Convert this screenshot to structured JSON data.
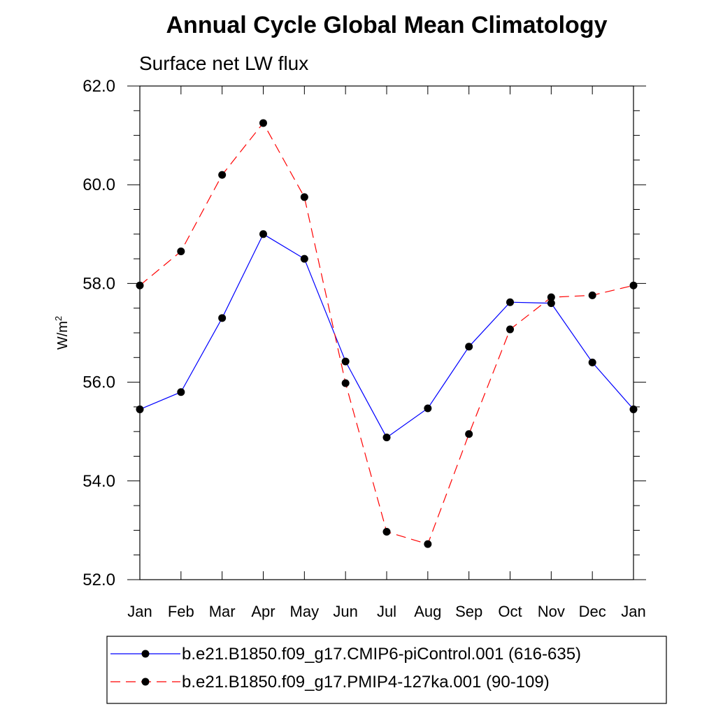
{
  "chart_data": {
    "type": "line",
    "title": "Annual Cycle Global Mean Climatology",
    "subtitle": "Surface net LW flux",
    "ylabel": "W/m",
    "ylabel_superscript": "2",
    "ylim": [
      52.0,
      62.0
    ],
    "y_ticks": [
      "52.0",
      "54.0",
      "56.0",
      "58.0",
      "60.0",
      "62.0"
    ],
    "categories": [
      "Jan",
      "Feb",
      "Mar",
      "Apr",
      "May",
      "Jun",
      "Jul",
      "Aug",
      "Sep",
      "Oct",
      "Nov",
      "Dec",
      "Jan"
    ],
    "grid": false,
    "legend_position": "bottom",
    "series": [
      {
        "name": "b.e21.B1850.f09_g17.CMIP6-piControl.001 (616-635)",
        "color": "#0000ff",
        "line_style": "solid",
        "marker": "filled-circle",
        "values": [
          55.45,
          55.8,
          57.3,
          59.0,
          58.5,
          56.42,
          54.88,
          55.47,
          56.72,
          57.62,
          57.6,
          56.4,
          55.45
        ]
      },
      {
        "name": "b.e21.B1850.f09_g17.PMIP4-127ka.001 (90-109)",
        "color": "#ff0000",
        "line_style": "dashed",
        "marker": "filled-circle",
        "values": [
          57.96,
          58.65,
          60.2,
          61.25,
          59.75,
          55.98,
          52.97,
          52.72,
          54.95,
          57.07,
          57.72,
          57.76,
          57.96
        ]
      }
    ]
  }
}
